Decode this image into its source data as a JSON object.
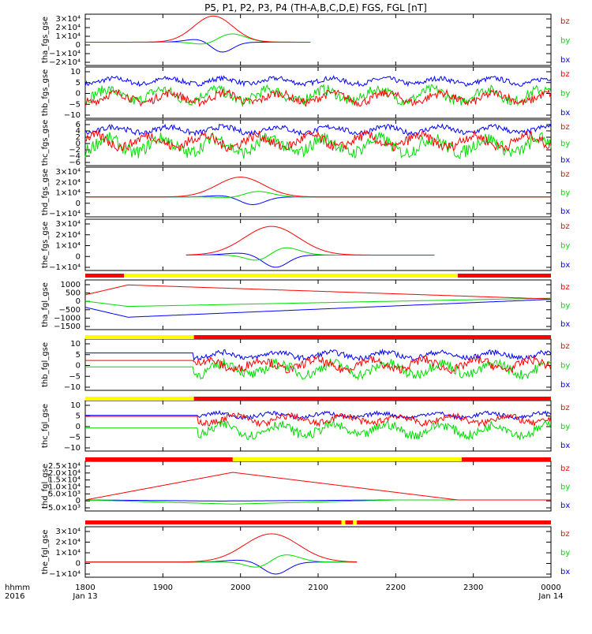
{
  "title": "P5, P1, P2, P3, P4 (TH-A,B,C,D,E) FGS, FGL [nT]",
  "colors": {
    "bx": "#0000ff",
    "by": "#00dd00",
    "bz": "#ff0000",
    "flag_red": "#ff0000",
    "flag_yellow": "#ffff00",
    "axis": "#000000"
  },
  "x_axis": {
    "label_top": "hhmm",
    "label_bottom": "2016",
    "tick_labels": [
      "1800",
      "1900",
      "2000",
      "2100",
      "2200",
      "2300",
      "0000"
    ],
    "sub_labels": [
      {
        "text": "Jan 13",
        "at": "1800"
      },
      {
        "text": "Jan 14",
        "at": "0000"
      }
    ]
  },
  "chart_data": [
    {
      "type": "line",
      "ylabel": "tha_fgs_gse",
      "ylim": [
        -25000,
        30000
      ],
      "yticks": [
        "3×10⁴",
        "2×10⁴",
        "1×10⁴",
        "0",
        "−1×10⁴",
        "−2×10⁴"
      ],
      "legend": [
        "bz",
        "by",
        "bx"
      ],
      "data_range_hours": [
        0,
        2.9
      ],
      "series": [
        {
          "name": "bz",
          "peak_hour": 1.65,
          "peak_value": 28000,
          "width": 0.25,
          "noise": 0
        },
        {
          "name": "by",
          "peak_hour": 1.85,
          "peak_value": 10000,
          "width": 0.2,
          "neg_hour": 1.6,
          "neg_value": -5000
        },
        {
          "name": "bx",
          "peak_hour": 1.5,
          "peak_value": 4000,
          "width": 0.18,
          "neg_hour": 1.75,
          "neg_value": -12000
        }
      ]
    },
    {
      "type": "line",
      "ylabel": "thb_fgs_gse",
      "ylim": [
        -10,
        10
      ],
      "yticks": [
        "10",
        "5",
        "0",
        "−5",
        "−10"
      ],
      "legend": [
        "bz",
        "by",
        "bx"
      ],
      "data_range_hours": [
        0,
        6.0
      ],
      "series": [
        {
          "name": "bx",
          "base": 4.5,
          "noise": 1.2
        },
        {
          "name": "by",
          "base": -1.0,
          "noise": 2.5
        },
        {
          "name": "bz",
          "base": -2.0,
          "noise": 2.0
        }
      ]
    },
    {
      "type": "line",
      "ylabel": "thc_fgs_gse",
      "ylim": [
        -8,
        8
      ],
      "yticks": [
        "6",
        "4",
        "2",
        "0",
        "−2",
        "−4",
        "−6"
      ],
      "legend": [
        "bz",
        "by",
        "bx"
      ],
      "data_range_hours": [
        0,
        6.0
      ],
      "series": [
        {
          "name": "bx",
          "base": 4.5,
          "noise": 1.2
        },
        {
          "name": "by",
          "base": -1.0,
          "noise": 2.8
        },
        {
          "name": "bz",
          "base": 0.5,
          "noise": 2.2
        }
      ]
    },
    {
      "type": "line",
      "ylabel": "thd_fgs_gse",
      "ylim": [
        -20000,
        30000
      ],
      "yticks": [
        "3×10⁴",
        "2×10⁴",
        "1×10⁴",
        "0",
        "−1×10⁴"
      ],
      "legend": [
        "bz",
        "by",
        "bx"
      ],
      "data_range_hours": [
        0,
        6.0
      ],
      "series": [
        {
          "name": "bz",
          "peak_hour": 2.0,
          "peak_value": 20000,
          "width": 0.3
        },
        {
          "name": "by",
          "peak_hour": 2.2,
          "peak_value": 6000,
          "width": 0.2,
          "neg_hour": 1.95,
          "neg_value": -2000
        },
        {
          "name": "bx",
          "peak_hour": 1.8,
          "peak_value": 1500,
          "width": 0.2,
          "neg_hour": 2.15,
          "neg_value": -8000
        }
      ]
    },
    {
      "type": "line",
      "ylabel": "the_fgs_gse",
      "ylim": [
        -15000,
        35000
      ],
      "yticks": [
        "3×10⁴",
        "2×10⁴",
        "1×10⁴",
        "0",
        "−1×10⁴"
      ],
      "legend": [
        "bz",
        "by",
        "bx"
      ],
      "data_range_hours": [
        1.3,
        4.5
      ],
      "series": [
        {
          "name": "bz",
          "peak_hour": 2.4,
          "peak_value": 28000,
          "width": 0.35
        },
        {
          "name": "by",
          "peak_hour": 2.55,
          "peak_value": 8000,
          "width": 0.2,
          "neg_hour": 2.25,
          "neg_value": -7000
        },
        {
          "name": "bx",
          "peak_hour": 2.0,
          "peak_value": 2000,
          "width": 0.2,
          "neg_hour": 2.45,
          "neg_value": -12000
        }
      ]
    },
    {
      "type": "line",
      "ylabel": "tha_fgl_gse",
      "ylim": [
        -1800,
        1200
      ],
      "yticks": [
        "1000",
        "500",
        "0",
        "−500",
        "−1000",
        "−1500"
      ],
      "legend": [
        "bz",
        "by",
        "bx"
      ],
      "data_range_hours": [
        0,
        6.0
      ],
      "series": [
        {
          "name": "bz",
          "start": 300,
          "knee_hour": 0.55,
          "knee": 900,
          "end": 50
        },
        {
          "name": "by",
          "start": -80,
          "knee_hour": 0.55,
          "knee": -400,
          "end": 100
        },
        {
          "name": "bx",
          "start": -450,
          "knee_hour": 0.55,
          "knee": -1050,
          "end": 30
        }
      ]
    },
    {
      "type": "line",
      "ylabel": "thb_fgl_gse",
      "ylim": [
        -12,
        12
      ],
      "yticks": [
        "10",
        "5",
        "0",
        "−5",
        "−10"
      ],
      "legend": [
        "bz",
        "by",
        "bx"
      ],
      "data_range_hours": [
        0,
        6.0
      ],
      "quiet_until_hour": 1.4,
      "series": [
        {
          "name": "bx",
          "quiet": 5.5,
          "base": 4.5,
          "noise": 1.5
        },
        {
          "name": "by",
          "quiet": -1.0,
          "base": -2.0,
          "noise": 3.0
        },
        {
          "name": "bz",
          "quiet": 2.0,
          "base": 0.0,
          "noise": 2.5
        }
      ]
    },
    {
      "type": "line",
      "ylabel": "thc_fgl_gse",
      "ylim": [
        -12,
        12
      ],
      "yticks": [
        "10",
        "5",
        "0",
        "−5",
        "−10"
      ],
      "legend": [
        "bz",
        "by",
        "bx"
      ],
      "data_range_hours": [
        0,
        6.0
      ],
      "quiet_until_hour": 1.45,
      "series": [
        {
          "name": "bx",
          "quiet": 5.0,
          "base": 5.0,
          "noise": 1.2
        },
        {
          "name": "by",
          "quiet": -1.0,
          "base": -2.0,
          "noise": 2.8
        },
        {
          "name": "bz",
          "quiet": 4.5,
          "base": 3.0,
          "noise": 2.0
        }
      ]
    },
    {
      "type": "line",
      "ylabel": "thd_fgl_gse",
      "ylim": [
        -8000,
        28000
      ],
      "yticks": [
        "2.5×10⁴",
        "2.0×10⁴",
        "1.5×10⁴",
        "1.0×10⁴",
        "5.0×10³",
        "0",
        "−5.0×10³"
      ],
      "legend": [
        "bz",
        "by",
        "bx"
      ],
      "data_range_hours": [
        0,
        6.0
      ],
      "series": [
        {
          "name": "bz",
          "start": 0,
          "knee_hour": 1.9,
          "knee": 20000,
          "end": 0,
          "end_hour": 4.8
        },
        {
          "name": "by",
          "start": 0,
          "knee_hour": 1.9,
          "knee": -3000,
          "end": 0,
          "end_hour": 4.0
        },
        {
          "name": "bx",
          "start": 0,
          "knee_hour": 1.75,
          "knee": -800,
          "end": 0,
          "end_hour": 4.0
        }
      ]
    },
    {
      "type": "line",
      "ylabel": "the_fgl_gse",
      "ylim": [
        -15000,
        35000
      ],
      "yticks": [
        "3×10⁴",
        "2×10⁴",
        "1×10⁴",
        "0",
        "−1×10⁴"
      ],
      "legend": [
        "bz",
        "by",
        "bx"
      ],
      "data_range_hours": [
        0,
        3.5
      ],
      "series": [
        {
          "name": "bz",
          "peak_hour": 2.4,
          "peak_value": 28000,
          "width": 0.35
        },
        {
          "name": "by",
          "peak_hour": 2.55,
          "peak_value": 8000,
          "width": 0.2,
          "neg_hour": 2.25,
          "neg_value": -7000
        },
        {
          "name": "bx",
          "peak_hour": 2.0,
          "peak_value": 2000,
          "width": 0.2,
          "neg_hour": 2.45,
          "neg_value": -12000
        }
      ]
    }
  ],
  "flag_bars": [
    {
      "after_panel": 4,
      "segments": [
        {
          "from": 0,
          "to": 0.5,
          "c": "flag_red"
        },
        {
          "from": 0.5,
          "to": 4.8,
          "c": "flag_yellow"
        },
        {
          "from": 4.8,
          "to": 6.0,
          "c": "flag_red"
        }
      ]
    },
    {
      "after_panel": 5,
      "segments": [
        {
          "from": 0,
          "to": 1.4,
          "c": "flag_yellow"
        },
        {
          "from": 1.4,
          "to": 6.0,
          "c": "flag_red"
        }
      ]
    },
    {
      "after_panel": 6,
      "segments": [
        {
          "from": 0,
          "to": 1.4,
          "c": "flag_yellow"
        },
        {
          "from": 1.4,
          "to": 6.0,
          "c": "flag_red"
        }
      ]
    },
    {
      "after_panel": 7,
      "segments": [
        {
          "from": 0,
          "to": 1.9,
          "c": "flag_red"
        },
        {
          "from": 1.9,
          "to": 4.85,
          "c": "flag_yellow"
        },
        {
          "from": 4.85,
          "to": 6.0,
          "c": "flag_red"
        }
      ]
    },
    {
      "after_panel": 8,
      "segments": [
        {
          "from": 0,
          "to": 3.3,
          "c": "flag_red"
        },
        {
          "from": 3.3,
          "to": 3.35,
          "c": "flag_yellow"
        },
        {
          "from": 3.35,
          "to": 3.45,
          "c": "flag_red"
        },
        {
          "from": 3.45,
          "to": 3.5,
          "c": "flag_yellow"
        },
        {
          "from": 3.5,
          "to": 6.0,
          "c": "flag_red"
        }
      ]
    }
  ]
}
